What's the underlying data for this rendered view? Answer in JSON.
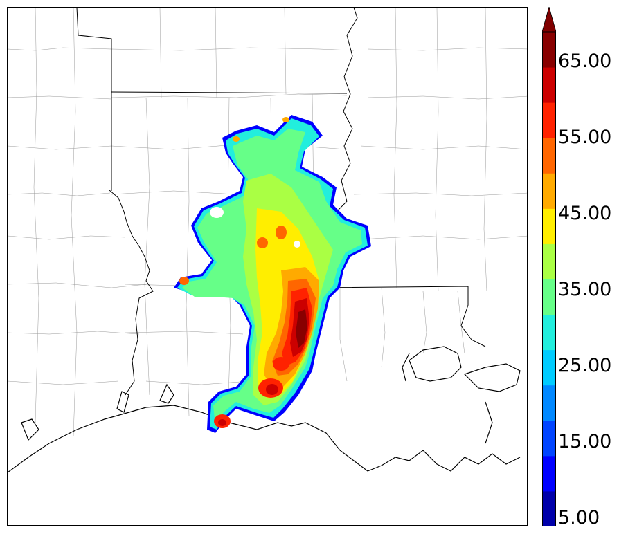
{
  "colorbar": {
    "labels": [
      "5.00",
      "15.00",
      "25.00",
      "35.00",
      "45.00",
      "55.00",
      "65.00"
    ],
    "colors": [
      "#0000aa",
      "#0000ff",
      "#0044ff",
      "#0088ff",
      "#00ccff",
      "#22eedd",
      "#66ff88",
      "#aaff44",
      "#ffee00",
      "#ffaa00",
      "#ff6600",
      "#ff2200",
      "#cc0000",
      "#880000"
    ],
    "extend": "max",
    "extend_color": "#800000"
  },
  "map": {
    "features": [
      "state-borders",
      "county-borders",
      "coastline",
      "precipitation-field"
    ],
    "region": "Louisiana / Mississippi"
  }
}
